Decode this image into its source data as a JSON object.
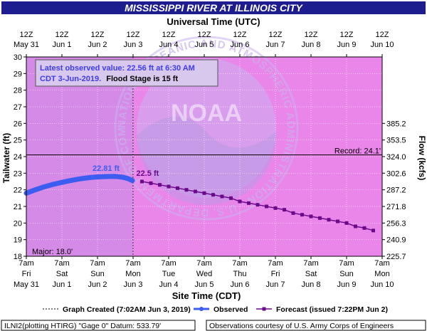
{
  "title": "MISSISSIPPI RIVER AT ILLINOIS CITY",
  "top_axis_label": "Universal Time (UTC)",
  "bottom_axis_label": "Site Time (CDT)",
  "left_axis_label": "Tailwater (ft)",
  "right_axis_label": "Flow (kcfs)",
  "utc_ticks": [
    {
      "t": "12Z",
      "d": "May 31"
    },
    {
      "t": "12Z",
      "d": "Jun 1"
    },
    {
      "t": "12Z",
      "d": "Jun 2"
    },
    {
      "t": "12Z",
      "d": "Jun 3"
    },
    {
      "t": "12Z",
      "d": "Jun 4"
    },
    {
      "t": "12Z",
      "d": "Jun 5"
    },
    {
      "t": "12Z",
      "d": "Jun 6"
    },
    {
      "t": "12Z",
      "d": "Jun 7"
    },
    {
      "t": "12Z",
      "d": "Jun 8"
    },
    {
      "t": "12Z",
      "d": "Jun 9"
    },
    {
      "t": "12Z",
      "d": "Jun 10"
    }
  ],
  "local_ticks": [
    {
      "t": "7am",
      "w": "Fri",
      "d": "May 31"
    },
    {
      "t": "7am",
      "w": "Sat",
      "d": "Jun 1"
    },
    {
      "t": "7am",
      "w": "Sun",
      "d": "Jun 2"
    },
    {
      "t": "7am",
      "w": "Mon",
      "d": "Jun 3"
    },
    {
      "t": "7am",
      "w": "Tue",
      "d": "Jun 4"
    },
    {
      "t": "7am",
      "w": "Wed",
      "d": "Jun 5"
    },
    {
      "t": "7am",
      "w": "Thu",
      "d": "Jun 6"
    },
    {
      "t": "7am",
      "w": "Fri",
      "d": "Jun 7"
    },
    {
      "t": "7am",
      "w": "Sat",
      "d": "Jun 8"
    },
    {
      "t": "7am",
      "w": "Sun",
      "d": "Jun 9"
    },
    {
      "t": "7am",
      "w": "Mon",
      "d": "Jun 10"
    }
  ],
  "info_box": {
    "line1": "Latest observed value: 22.56 ft at 6:30 AM",
    "line2a": "CDT 3-Jun-2019.",
    "line2b": "Flood Stage is 15 ft"
  },
  "legend": {
    "created": "Graph Created (7:02AM Jun 3, 2019)",
    "observed": "Observed",
    "forecast": "Forecast (issued 7:22PM Jun 2)"
  },
  "footer_left": "ILNI2(plotting HTIRG) \"Gage 0\" Datum: 533.79'",
  "footer_right": "Observations courtesy of U.S. Army Corps of Engineers",
  "watermark": {
    "center": "NOAA",
    "ring": "NATIONAL OCEANIC AND ATMOSPHERIC ADMINISTRATION · U.S. DEPARTMENT OF COMMERCE"
  },
  "colors": {
    "plot_bg_past": "#d68ae8",
    "plot_bg_future": "#ea86ea",
    "observed": "#3d5cf0",
    "forecast": "#6a0a8a",
    "title_bg": "#1d1d8f",
    "title_fg": "#ffffff"
  },
  "chart_data": {
    "type": "line",
    "x_axis": "time",
    "y_left": {
      "label": "Tailwater (ft)",
      "range": [
        18,
        30
      ],
      "ticks": [
        18,
        19,
        20,
        21,
        22,
        23,
        24,
        25,
        26,
        27,
        28,
        29,
        30
      ]
    },
    "y_right": {
      "label": "Flow (kcfs)",
      "ticks": [
        {
          "stage": 18,
          "label": "225.7"
        },
        {
          "stage": 19,
          "label": "240.9"
        },
        {
          "stage": 20,
          "label": "256.3"
        },
        {
          "stage": 21,
          "label": "271.8"
        },
        {
          "stage": 22,
          "label": "287.2"
        },
        {
          "stage": 23,
          "label": "302.6"
        },
        {
          "stage": 24,
          "label": "324.0"
        },
        {
          "stage": 25,
          "label": "353.5"
        },
        {
          "stage": 26,
          "label": "385.2"
        }
      ]
    },
    "x_range_days_from_May31_7am": [
      0,
      10
    ],
    "reference_lines": [
      {
        "value": 24.1,
        "label": "Record: 24.1'"
      },
      {
        "value": 18.0,
        "label": "Major: 18.0'"
      }
    ],
    "graph_created_day": 2.998,
    "annotations": [
      {
        "text": "22.81 ft",
        "series": "Observed"
      },
      {
        "text": "22.5 ft",
        "series": "Forecast"
      }
    ],
    "series": [
      {
        "name": "Observed",
        "points": [
          [
            0.0,
            21.8
          ],
          [
            0.25,
            22.0
          ],
          [
            0.5,
            22.18
          ],
          [
            0.75,
            22.33
          ],
          [
            1.0,
            22.45
          ],
          [
            1.25,
            22.56
          ],
          [
            1.5,
            22.66
          ],
          [
            1.75,
            22.73
          ],
          [
            2.0,
            22.78
          ],
          [
            2.25,
            22.8
          ],
          [
            2.5,
            22.81
          ],
          [
            2.7,
            22.76
          ],
          [
            2.85,
            22.68
          ],
          [
            2.98,
            22.56
          ]
        ]
      },
      {
        "name": "Forecast",
        "points": [
          [
            3.25,
            22.5
          ],
          [
            3.5,
            22.4
          ],
          [
            3.75,
            22.3
          ],
          [
            4.0,
            22.2
          ],
          [
            4.25,
            22.1
          ],
          [
            4.5,
            22.0
          ],
          [
            4.75,
            21.9
          ],
          [
            5.0,
            21.8
          ],
          [
            5.25,
            21.7
          ],
          [
            5.5,
            21.6
          ],
          [
            5.75,
            21.5
          ],
          [
            6.0,
            21.3
          ],
          [
            6.25,
            21.2
          ],
          [
            6.5,
            21.1
          ],
          [
            6.75,
            21.0
          ],
          [
            7.0,
            20.9
          ],
          [
            7.25,
            20.8
          ],
          [
            7.5,
            20.6
          ],
          [
            7.75,
            20.5
          ],
          [
            8.0,
            20.4
          ],
          [
            8.25,
            20.3
          ],
          [
            8.5,
            20.2
          ],
          [
            8.75,
            20.1
          ],
          [
            9.0,
            20.0
          ],
          [
            9.25,
            19.8
          ],
          [
            9.5,
            19.7
          ],
          [
            9.75,
            19.55
          ]
        ]
      }
    ]
  }
}
